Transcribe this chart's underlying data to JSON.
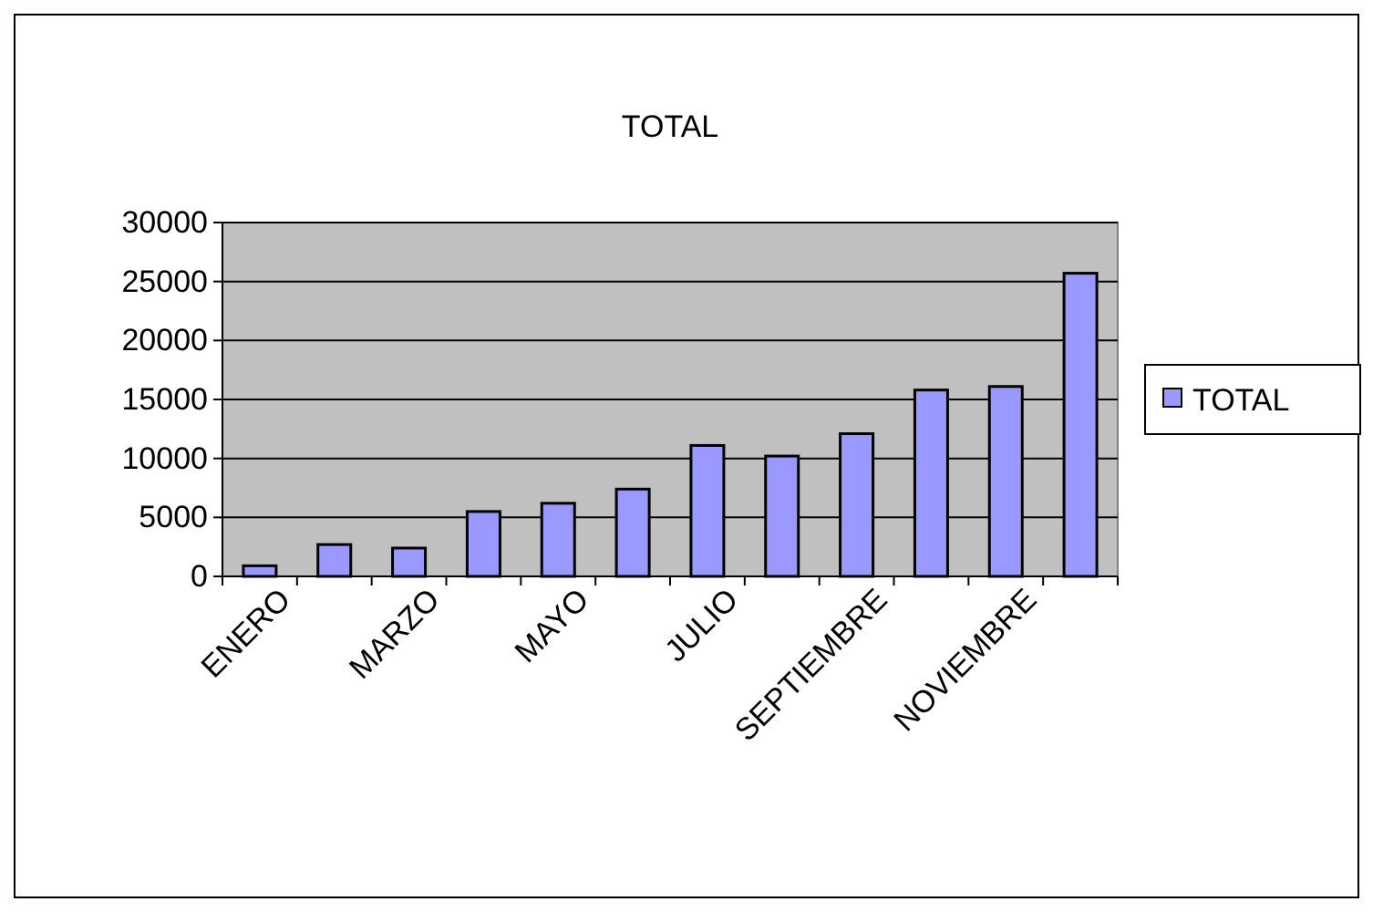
{
  "chart_data": {
    "type": "bar",
    "title": "TOTAL",
    "categories": [
      "ENERO",
      null,
      "MARZO",
      null,
      "MAYO",
      null,
      "JULIO",
      null,
      "SEPTIEMBRE",
      null,
      "NOVIEMBRE",
      null
    ],
    "series": [
      {
        "name": "TOTAL",
        "color": "#9999ff",
        "values": [
          900,
          2700,
          2400,
          5500,
          6200,
          7400,
          11100,
          10200,
          12100,
          15800,
          16100,
          25700
        ]
      }
    ],
    "ylim": [
      0,
      30000
    ],
    "yticks": [
      0,
      5000,
      10000,
      15000,
      20000,
      25000,
      30000
    ],
    "grid": "y",
    "legend": "right"
  }
}
